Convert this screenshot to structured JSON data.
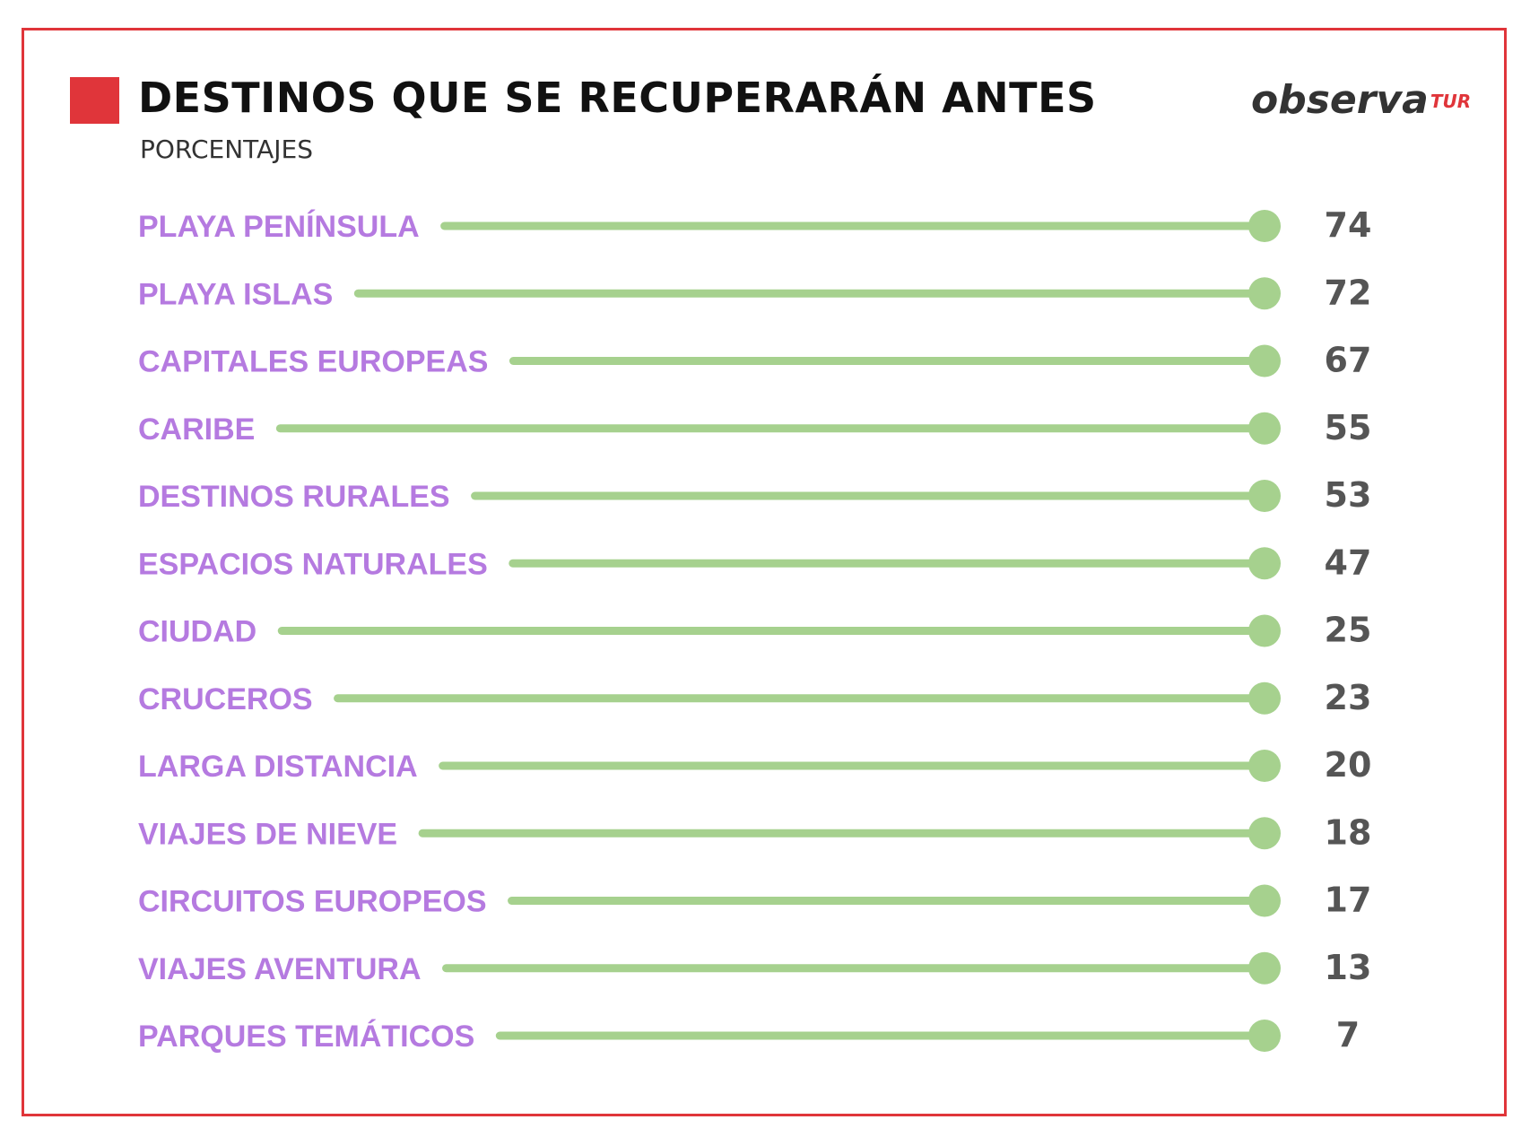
{
  "colors": {
    "frame": "#e0353a",
    "marker": "#e0353a",
    "label": "#b57ae0",
    "line": "#a6d18e",
    "value": "#555555",
    "brand_accent": "#e0353a"
  },
  "header": {
    "title": "DESTINOS QUE SE RECUPERARÁN ANTES",
    "subtitle": "PORCENTAJES"
  },
  "brand": {
    "main": "observa",
    "sub": "TUR"
  },
  "chart_data": {
    "type": "bar",
    "title": "DESTINOS QUE SE RECUPERARÁN ANTES",
    "subtitle": "PORCENTAJES",
    "orientation": "horizontal",
    "categories": [
      "PLAYA PENÍNSULA",
      "PLAYA ISLAS",
      "CAPITALES EUROPEAS",
      "CARIBE",
      "DESTINOS RURALES",
      "ESPACIOS NATURALES",
      "CIUDAD",
      "CRUCEROS",
      "LARGA DISTANCIA",
      "VIAJES DE NIEVE",
      "CIRCUITOS EUROPEOS",
      "VIAJES AVENTURA",
      "PARQUES TEMÁTICOS"
    ],
    "values": [
      74,
      72,
      67,
      55,
      53,
      47,
      25,
      23,
      20,
      18,
      17,
      13,
      7
    ],
    "grid": false,
    "legend": "none"
  }
}
